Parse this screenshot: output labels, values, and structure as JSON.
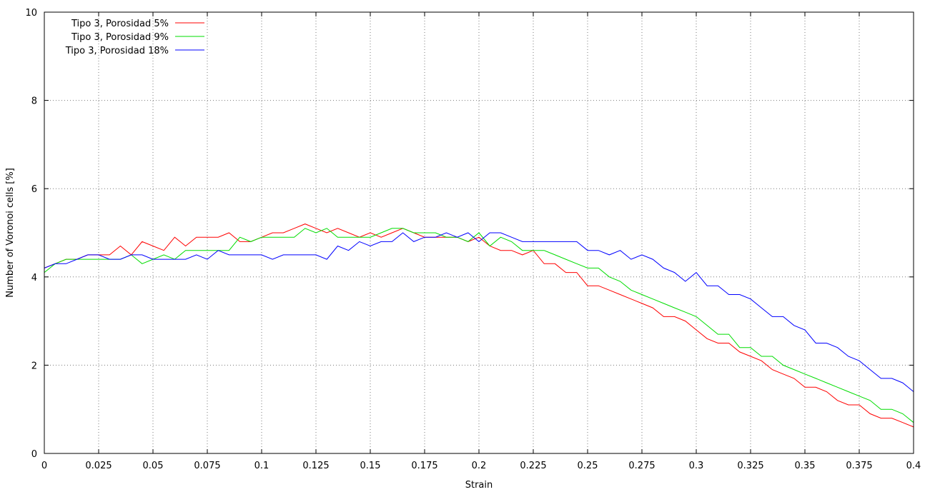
{
  "chart_data": {
    "type": "line",
    "xlabel": "Strain",
    "ylabel": "Number of Voronoi cells [%]",
    "xlim": [
      0,
      0.4
    ],
    "ylim": [
      0,
      10
    ],
    "x_ticks": [
      "0",
      "0.025",
      "0.05",
      "0.075",
      "0.1",
      "0.125",
      "0.15",
      "0.175",
      "0.2",
      "0.225",
      "0.25",
      "0.275",
      "0.3",
      "0.325",
      "0.35",
      "0.375",
      "0.4"
    ],
    "y_ticks": [
      "0",
      "2",
      "4",
      "6",
      "8",
      "10"
    ],
    "grid": true,
    "legend_position": "top-left",
    "x": [
      0,
      0.005,
      0.01,
      0.015,
      0.02,
      0.025,
      0.03,
      0.035,
      0.04,
      0.045,
      0.05,
      0.055,
      0.06,
      0.065,
      0.07,
      0.075,
      0.08,
      0.085,
      0.09,
      0.095,
      0.1,
      0.105,
      0.11,
      0.115,
      0.12,
      0.125,
      0.13,
      0.135,
      0.14,
      0.145,
      0.15,
      0.155,
      0.16,
      0.165,
      0.17,
      0.175,
      0.18,
      0.185,
      0.19,
      0.195,
      0.2,
      0.205,
      0.21,
      0.215,
      0.22,
      0.225,
      0.23,
      0.235,
      0.24,
      0.245,
      0.25,
      0.255,
      0.26,
      0.265,
      0.27,
      0.275,
      0.28,
      0.285,
      0.29,
      0.295,
      0.3,
      0.305,
      0.31,
      0.315,
      0.32,
      0.325,
      0.33,
      0.335,
      0.34,
      0.345,
      0.35,
      0.355,
      0.36,
      0.365,
      0.37,
      0.375,
      0.38,
      0.385,
      0.39,
      0.395,
      0.4
    ],
    "series": [
      {
        "name": "Tipo 3, Porosidad 5%",
        "color": "#ff0000",
        "values": [
          4.2,
          4.3,
          4.4,
          4.4,
          4.5,
          4.5,
          4.5,
          4.7,
          4.5,
          4.8,
          4.7,
          4.6,
          4.9,
          4.7,
          4.9,
          4.9,
          4.9,
          5.0,
          4.8,
          4.8,
          4.9,
          5.0,
          5.0,
          5.1,
          5.2,
          5.1,
          5.0,
          5.1,
          5.0,
          4.9,
          5.0,
          4.9,
          5.0,
          5.1,
          5.0,
          4.9,
          4.9,
          4.9,
          4.9,
          4.8,
          4.9,
          4.7,
          4.6,
          4.6,
          4.5,
          4.6,
          4.3,
          4.3,
          4.1,
          4.1,
          3.8,
          3.8,
          3.7,
          3.6,
          3.5,
          3.4,
          3.3,
          3.1,
          3.1,
          3.0,
          2.8,
          2.6,
          2.5,
          2.5,
          2.3,
          2.2,
          2.1,
          1.9,
          1.8,
          1.7,
          1.5,
          1.5,
          1.4,
          1.2,
          1.1,
          1.1,
          0.9,
          0.8,
          0.8,
          0.7,
          0.6
        ]
      },
      {
        "name": "Tipo 3, Porosidad 9%",
        "color": "#00dd00",
        "values": [
          4.1,
          4.3,
          4.4,
          4.4,
          4.4,
          4.4,
          4.4,
          4.4,
          4.5,
          4.3,
          4.4,
          4.5,
          4.4,
          4.6,
          4.6,
          4.6,
          4.6,
          4.6,
          4.9,
          4.8,
          4.9,
          4.9,
          4.9,
          4.9,
          5.1,
          5.0,
          5.1,
          4.9,
          4.9,
          4.9,
          4.9,
          5.0,
          5.1,
          5.1,
          5.0,
          5.0,
          5.0,
          4.9,
          4.9,
          4.8,
          5.0,
          4.7,
          4.9,
          4.8,
          4.6,
          4.6,
          4.6,
          4.5,
          4.4,
          4.3,
          4.2,
          4.2,
          4.0,
          3.9,
          3.7,
          3.6,
          3.5,
          3.4,
          3.3,
          3.2,
          3.1,
          2.9,
          2.7,
          2.7,
          2.4,
          2.4,
          2.2,
          2.2,
          2.0,
          1.9,
          1.8,
          1.7,
          1.6,
          1.5,
          1.4,
          1.3,
          1.2,
          1.0,
          1.0,
          0.9,
          0.7
        ]
      },
      {
        "name": "Tipo 3, Porosidad 18%",
        "color": "#0000ff",
        "values": [
          4.2,
          4.3,
          4.3,
          4.4,
          4.5,
          4.5,
          4.4,
          4.4,
          4.5,
          4.5,
          4.4,
          4.4,
          4.4,
          4.4,
          4.5,
          4.4,
          4.6,
          4.5,
          4.5,
          4.5,
          4.5,
          4.4,
          4.5,
          4.5,
          4.5,
          4.5,
          4.4,
          4.7,
          4.6,
          4.8,
          4.7,
          4.8,
          4.8,
          5.0,
          4.8,
          4.9,
          4.9,
          5.0,
          4.9,
          5.0,
          4.8,
          5.0,
          5.0,
          4.9,
          4.8,
          4.8,
          4.8,
          4.8,
          4.8,
          4.8,
          4.6,
          4.6,
          4.5,
          4.6,
          4.4,
          4.5,
          4.4,
          4.2,
          4.1,
          3.9,
          4.1,
          3.8,
          3.8,
          3.6,
          3.6,
          3.5,
          3.3,
          3.1,
          3.1,
          2.9,
          2.8,
          2.5,
          2.5,
          2.4,
          2.2,
          2.1,
          1.9,
          1.7,
          1.7,
          1.6,
          1.4
        ]
      }
    ]
  }
}
